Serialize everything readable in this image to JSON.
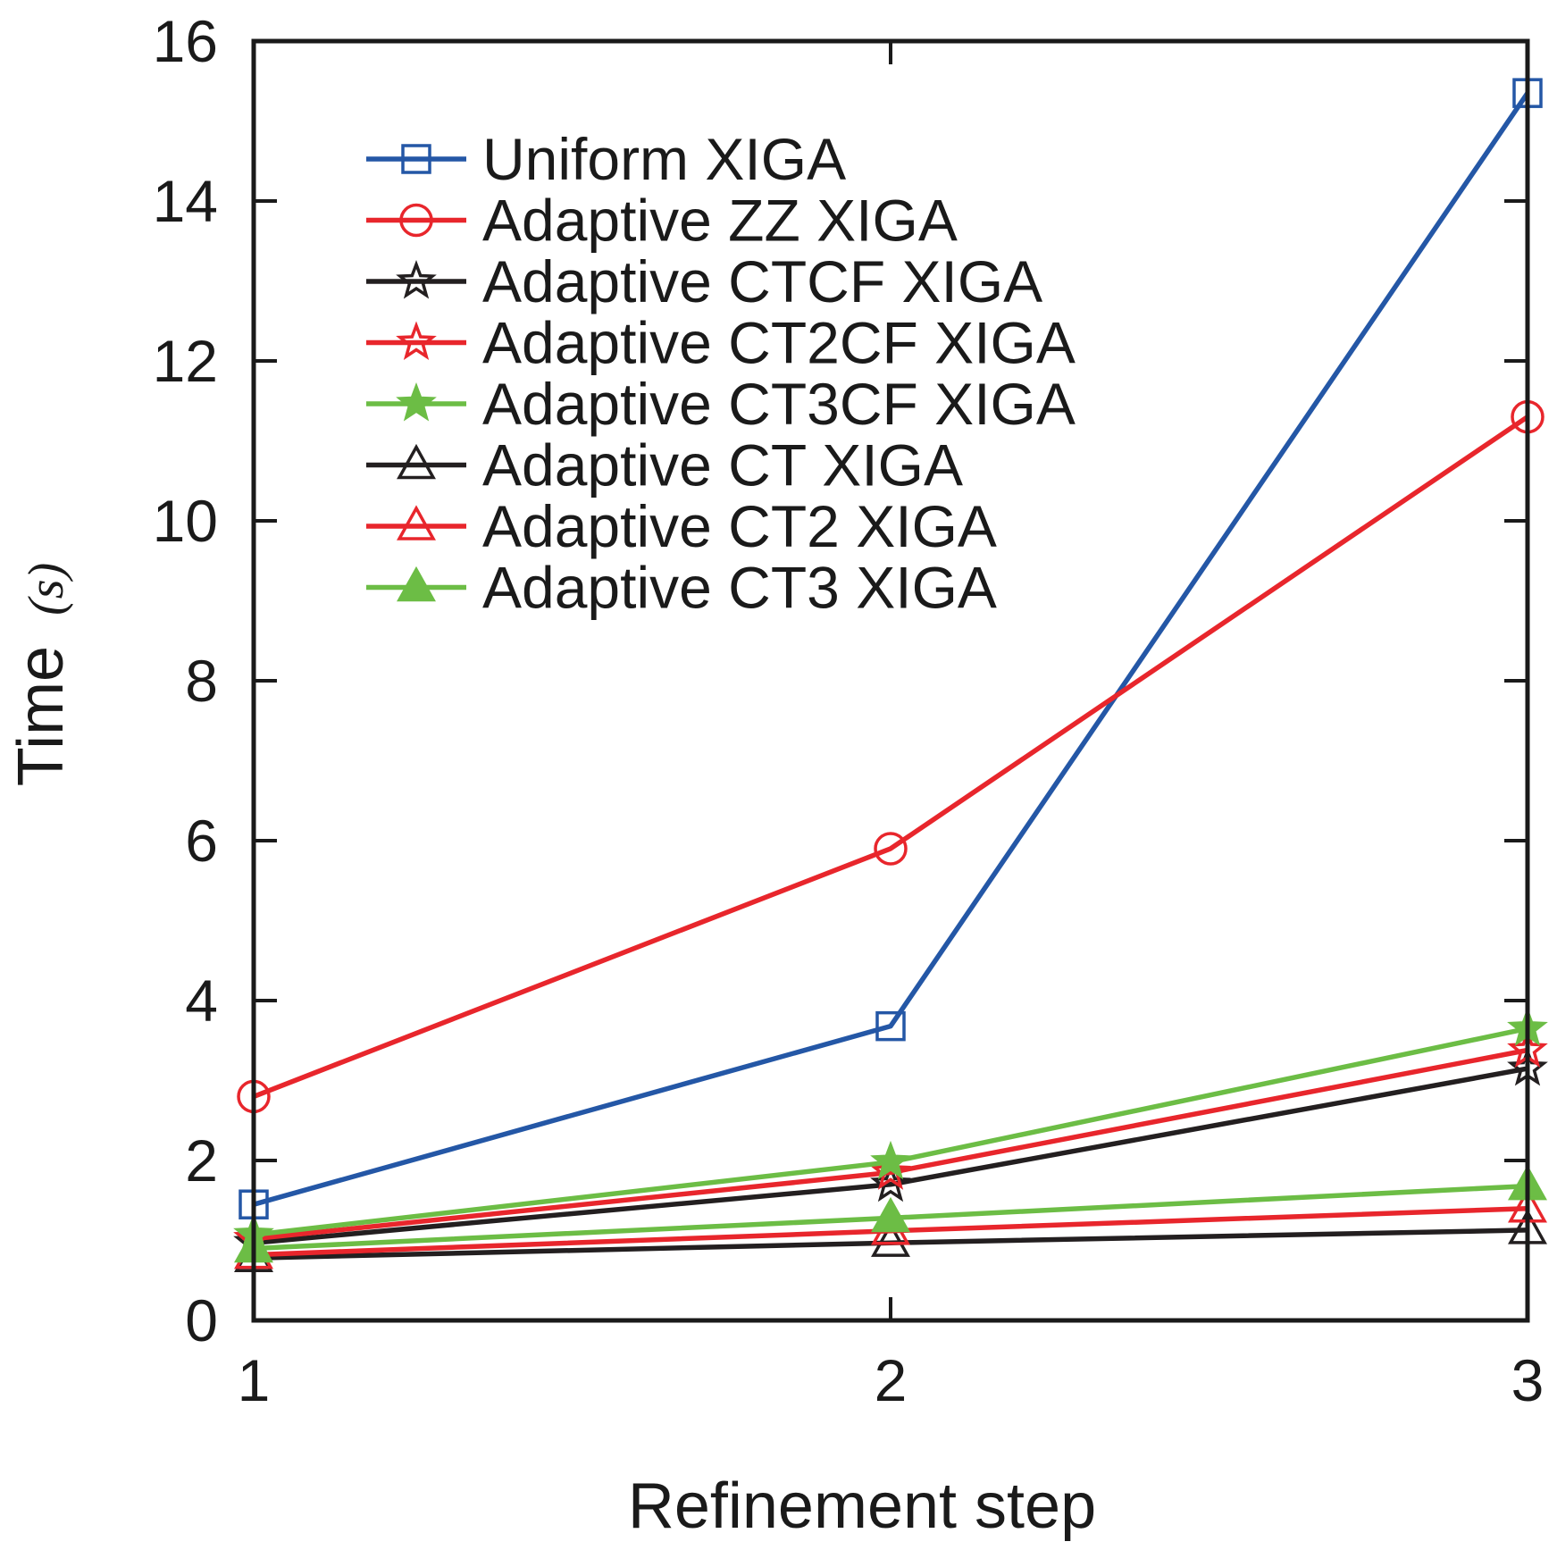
{
  "chart_data": {
    "type": "line",
    "title": "",
    "xlabel": "Refinement step",
    "ylabel_main": "Time",
    "ylabel_unit": "(s)",
    "x": [
      1,
      2,
      3
    ],
    "xticks": [
      "1",
      "2",
      "3"
    ],
    "yticks": [
      "0",
      "2",
      "4",
      "6",
      "8",
      "10",
      "12",
      "14",
      "16"
    ],
    "xlim": [
      1,
      3
    ],
    "ylim": [
      0,
      16
    ],
    "grid": false,
    "legend_position": "top-left",
    "series": [
      {
        "name": "Uniform XIGA",
        "color": "#2457a6",
        "marker": "square",
        "values": [
          1.45,
          3.68,
          15.35
        ]
      },
      {
        "name": "Adaptive ZZ XIGA",
        "color": "#e8262c",
        "marker": "circle",
        "values": [
          2.8,
          5.9,
          11.3
        ]
      },
      {
        "name": "Adaptive CTCF XIGA",
        "color": "#231f20",
        "marker": "star-open",
        "values": [
          0.97,
          1.7,
          3.15
        ]
      },
      {
        "name": "Adaptive CT2CF XIGA",
        "color": "#e8262c",
        "marker": "star-open",
        "values": [
          1.02,
          1.85,
          3.38
        ]
      },
      {
        "name": "Adaptive CT3CF XIGA",
        "color": "#6cbd45",
        "marker": "star-filled",
        "values": [
          1.07,
          1.98,
          3.65
        ]
      },
      {
        "name": "Adaptive CT XIGA",
        "color": "#231f20",
        "marker": "triangle-open",
        "values": [
          0.78,
          0.97,
          1.13
        ]
      },
      {
        "name": "Adaptive CT2 XIGA",
        "color": "#e8262c",
        "marker": "triangle-open",
        "values": [
          0.82,
          1.12,
          1.4
        ]
      },
      {
        "name": "Adaptive CT3 XIGA",
        "color": "#6cbd45",
        "marker": "triangle-filled",
        "values": [
          0.9,
          1.28,
          1.68
        ]
      }
    ]
  }
}
